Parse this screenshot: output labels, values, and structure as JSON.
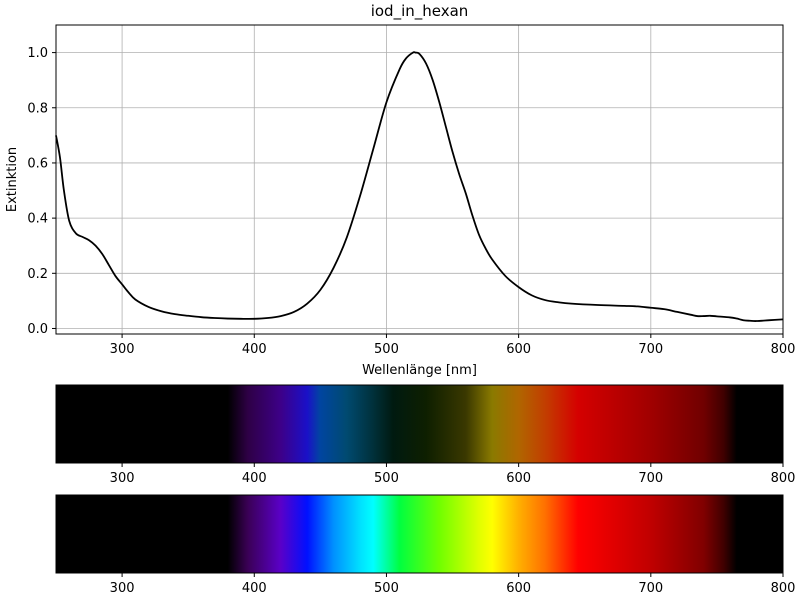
{
  "chart_data": [
    {
      "type": "line",
      "title": "iod_in_hexan",
      "xlabel": "Wellenlänge [nm]",
      "ylabel": "Extinktion",
      "xlim": [
        250,
        800
      ],
      "ylim": [
        -0.02,
        1.1
      ],
      "grid": true,
      "xticks": [
        300,
        400,
        500,
        600,
        700,
        800
      ],
      "xtick_labels": [
        "300",
        "400",
        "500",
        "600",
        "700",
        "800"
      ],
      "yticks": [
        0.0,
        0.2,
        0.4,
        0.6,
        0.8,
        1.0
      ],
      "ytick_labels": [
        "0.0",
        "0.2",
        "0.4",
        "0.6",
        "0.8",
        "1.0"
      ],
      "series": [
        {
          "color": "#000000",
          "x": [
            250,
            253,
            256,
            260,
            265,
            270,
            275,
            280,
            285,
            290,
            295,
            300,
            305,
            310,
            320,
            330,
            340,
            350,
            360,
            370,
            380,
            390,
            400,
            410,
            420,
            430,
            440,
            450,
            460,
            470,
            480,
            490,
            500,
            510,
            515,
            520,
            522,
            525,
            530,
            535,
            540,
            545,
            550,
            555,
            560,
            565,
            570,
            575,
            580,
            590,
            600,
            610,
            620,
            630,
            640,
            660,
            680,
            690,
            700,
            710,
            720,
            730,
            735,
            740,
            745,
            750,
            760,
            765,
            770,
            775,
            780,
            790,
            800
          ],
          "y": [
            0.7,
            0.62,
            0.5,
            0.39,
            0.345,
            0.332,
            0.32,
            0.3,
            0.27,
            0.23,
            0.19,
            0.16,
            0.13,
            0.105,
            0.078,
            0.062,
            0.052,
            0.046,
            0.041,
            0.038,
            0.036,
            0.035,
            0.035,
            0.038,
            0.045,
            0.06,
            0.09,
            0.14,
            0.22,
            0.33,
            0.48,
            0.65,
            0.82,
            0.94,
            0.98,
            1.0,
            1.0,
            0.995,
            0.96,
            0.9,
            0.82,
            0.73,
            0.64,
            0.56,
            0.49,
            0.41,
            0.34,
            0.29,
            0.25,
            0.19,
            0.15,
            0.12,
            0.103,
            0.095,
            0.09,
            0.085,
            0.082,
            0.08,
            0.075,
            0.07,
            0.06,
            0.05,
            0.045,
            0.045,
            0.046,
            0.044,
            0.04,
            0.036,
            0.03,
            0.028,
            0.027,
            0.03,
            0.033
          ]
        }
      ]
    },
    {
      "type": "heatmap",
      "description": "visible-spectrum strip weighted by transmitted light",
      "xlim": [
        250,
        800
      ],
      "xticks": [
        300,
        400,
        500,
        600,
        700,
        800
      ],
      "xtick_labels": [
        "300",
        "400",
        "500",
        "600",
        "700",
        "800"
      ],
      "stops": [
        {
          "x": 250,
          "color": "#000000"
        },
        {
          "x": 380,
          "color": "#000000"
        },
        {
          "x": 395,
          "color": "#2e0045"
        },
        {
          "x": 420,
          "color": "#3d0088"
        },
        {
          "x": 440,
          "color": "#1a10c8"
        },
        {
          "x": 450,
          "color": "#0045a0"
        },
        {
          "x": 470,
          "color": "#004a70"
        },
        {
          "x": 490,
          "color": "#00303a"
        },
        {
          "x": 505,
          "color": "#001a10"
        },
        {
          "x": 530,
          "color": "#0e1f00"
        },
        {
          "x": 560,
          "color": "#3a3800"
        },
        {
          "x": 580,
          "color": "#8a7a00"
        },
        {
          "x": 600,
          "color": "#b06600"
        },
        {
          "x": 620,
          "color": "#c23e00"
        },
        {
          "x": 645,
          "color": "#d50000"
        },
        {
          "x": 700,
          "color": "#a00000"
        },
        {
          "x": 740,
          "color": "#700000"
        },
        {
          "x": 755,
          "color": "#400000"
        },
        {
          "x": 765,
          "color": "#000000"
        },
        {
          "x": 800,
          "color": "#000000"
        }
      ]
    },
    {
      "type": "heatmap",
      "description": "full visible-spectrum strip",
      "xlim": [
        250,
        800
      ],
      "xticks": [
        300,
        400,
        500,
        600,
        700,
        800
      ],
      "xtick_labels": [
        "300",
        "400",
        "500",
        "600",
        "700",
        "800"
      ],
      "stops": [
        {
          "x": 250,
          "color": "#000000"
        },
        {
          "x": 380,
          "color": "#000000"
        },
        {
          "x": 395,
          "color": "#3a0055"
        },
        {
          "x": 420,
          "color": "#5a00c8"
        },
        {
          "x": 440,
          "color": "#0010ff"
        },
        {
          "x": 460,
          "color": "#0090ff"
        },
        {
          "x": 480,
          "color": "#00e0ff"
        },
        {
          "x": 490,
          "color": "#00ffff"
        },
        {
          "x": 510,
          "color": "#00ff40"
        },
        {
          "x": 540,
          "color": "#70ff00"
        },
        {
          "x": 570,
          "color": "#e0ff00"
        },
        {
          "x": 580,
          "color": "#ffff00"
        },
        {
          "x": 600,
          "color": "#ffb000"
        },
        {
          "x": 620,
          "color": "#ff7000"
        },
        {
          "x": 645,
          "color": "#ff0000"
        },
        {
          "x": 700,
          "color": "#c00000"
        },
        {
          "x": 740,
          "color": "#800000"
        },
        {
          "x": 755,
          "color": "#400000"
        },
        {
          "x": 765,
          "color": "#000000"
        },
        {
          "x": 800,
          "color": "#000000"
        }
      ]
    }
  ]
}
